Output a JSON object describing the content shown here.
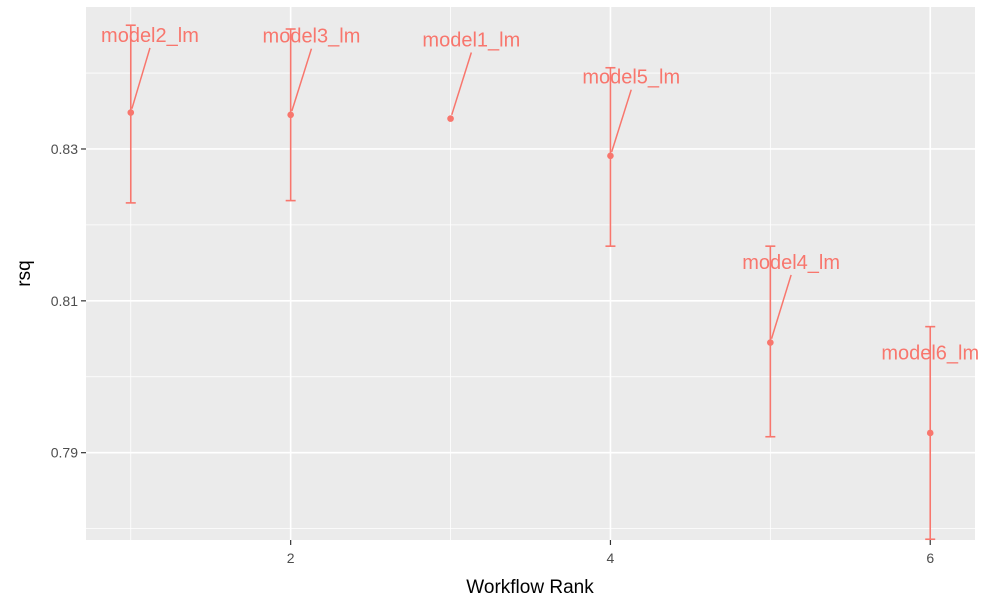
{
  "chart_data": {
    "type": "scatter",
    "title": "",
    "xlabel": "Workflow Rank",
    "ylabel": "rsq",
    "xlim": [
      0.72,
      6.28
    ],
    "ylim": [
      0.7785,
      0.8487
    ],
    "x_ticks": [
      2,
      4,
      6
    ],
    "x_tick_labels": [
      "2",
      "4",
      "6"
    ],
    "y_ticks": [
      0.79,
      0.81,
      0.83
    ],
    "y_tick_labels": [
      "0.79",
      "0.81",
      "0.83"
    ],
    "grid": true,
    "legend": "none",
    "colors": {
      "panel": "#ebebeb",
      "grid": "#ffffff",
      "series": "#f8766d",
      "axis_text": "#4d4d4d",
      "axis_title": "#000000"
    },
    "points": [
      {
        "rank": 1,
        "model": "model2_lm",
        "mean": 0.8348,
        "lower": 0.8229,
        "upper": 0.8463
      },
      {
        "rank": 2,
        "model": "model3_lm",
        "mean": 0.8345,
        "lower": 0.8232,
        "upper": 0.8458
      },
      {
        "rank": 3,
        "model": "model1_lm",
        "mean": 0.834,
        "lower": null,
        "upper": null
      },
      {
        "rank": 4,
        "model": "model5_lm",
        "mean": 0.8291,
        "lower": 0.8172,
        "upper": 0.8407
      },
      {
        "rank": 5,
        "model": "model4_lm",
        "mean": 0.8045,
        "lower": 0.7921,
        "upper": 0.8172
      },
      {
        "rank": 6,
        "model": "model6_lm",
        "mean": 0.7926,
        "lower": 0.7786,
        "upper": 0.8066
      }
    ],
    "labels": [
      {
        "model": "model2_lm",
        "x": 1.12,
        "y": 0.8441
      },
      {
        "model": "model3_lm",
        "x": 2.13,
        "y": 0.844
      },
      {
        "model": "model1_lm",
        "x": 3.13,
        "y": 0.8435
      },
      {
        "model": "model5_lm",
        "x": 4.13,
        "y": 0.8386
      },
      {
        "model": "model4_lm",
        "x": 5.13,
        "y": 0.8142
      },
      {
        "model": "model6_lm",
        "x": 6.0,
        "y": 0.8023
      }
    ]
  }
}
